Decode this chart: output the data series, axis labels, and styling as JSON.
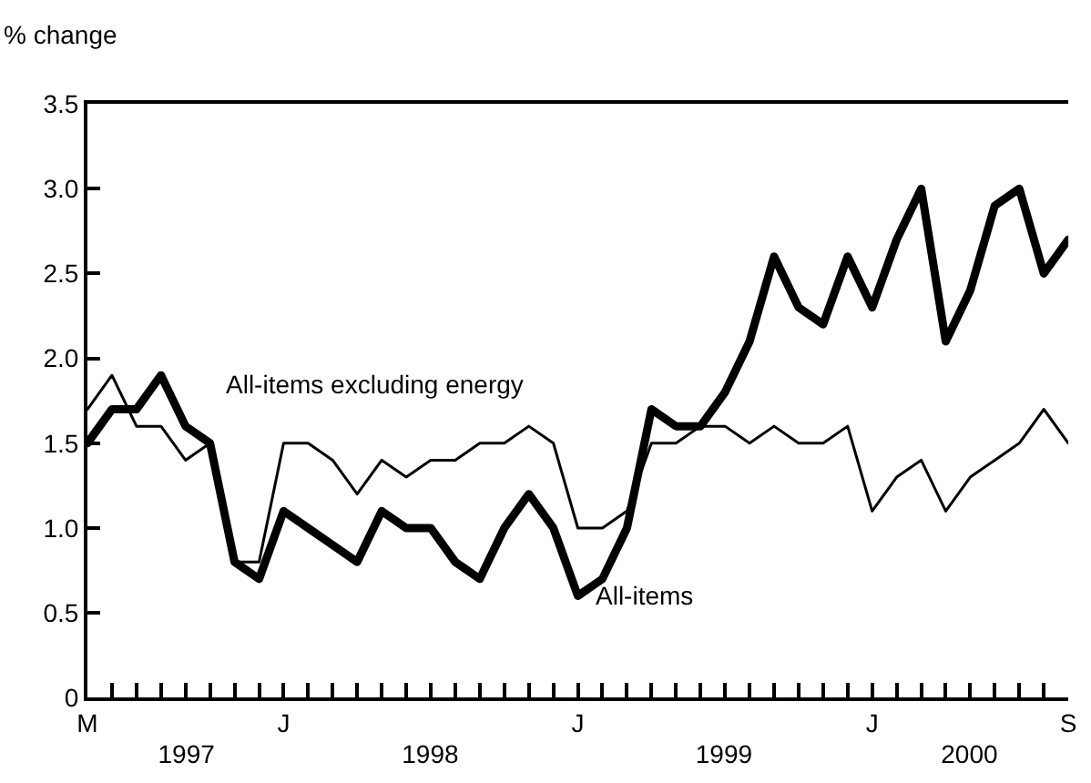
{
  "chart_data": {
    "type": "line",
    "ylabel": "% change",
    "categories": [
      "M",
      null,
      null,
      null,
      null,
      null,
      null,
      null,
      "J",
      null,
      null,
      null,
      null,
      null,
      null,
      null,
      null,
      null,
      null,
      null,
      "J",
      null,
      null,
      null,
      null,
      null,
      null,
      null,
      null,
      null,
      null,
      null,
      "J",
      null,
      null,
      null,
      null,
      null,
      null,
      null,
      "S"
    ],
    "series": [
      {
        "name": "All-items",
        "color": "#000000",
        "values": [
          1.5,
          1.7,
          1.7,
          1.9,
          1.6,
          1.5,
          0.8,
          0.7,
          1.1,
          1.0,
          0.9,
          0.8,
          1.1,
          1.0,
          1.0,
          0.8,
          0.7,
          1.0,
          1.2,
          1.0,
          0.6,
          0.7,
          1.0,
          1.7,
          1.6,
          1.6,
          1.8,
          2.1,
          2.6,
          2.3,
          2.2,
          2.6,
          2.3,
          2.7,
          3.0,
          2.1,
          2.4,
          2.9,
          3.0,
          2.5,
          2.7
        ]
      },
      {
        "name": "All-items excluding energy",
        "color": "#000000",
        "values": [
          1.7,
          1.9,
          1.6,
          1.6,
          1.4,
          1.5,
          0.8,
          0.8,
          1.5,
          1.5,
          1.4,
          1.2,
          1.4,
          1.3,
          1.4,
          1.4,
          1.5,
          1.5,
          1.6,
          1.5,
          1.0,
          1.0,
          1.1,
          1.5,
          1.5,
          1.6,
          1.6,
          1.5,
          1.6,
          1.5,
          1.5,
          1.6,
          1.1,
          1.3,
          1.4,
          1.1,
          1.3,
          1.4,
          1.5,
          1.7,
          1.5
        ]
      }
    ],
    "x2lim": [
      "1997-05",
      "2000-09"
    ],
    "x2ticks": [
      {
        "value": "1997-09",
        "label": "1997"
      },
      {
        "value": "1998-07",
        "label": "1998"
      },
      {
        "value": "1999-07",
        "label": "1999"
      },
      {
        "value": "2000-05",
        "label": "2000"
      }
    ],
    "ylim": [
      0,
      3.5
    ],
    "yticks": [
      0,
      0.5,
      {
        "value": 1,
        "label": "1.0"
      },
      1.5,
      {
        "value": 2,
        "label": "2.0"
      },
      2.5,
      {
        "value": 3,
        "label": "3.0"
      },
      3.5
    ],
    "grid": false,
    "legend": false,
    "marker": "none",
    "line_style": "solid"
  }
}
